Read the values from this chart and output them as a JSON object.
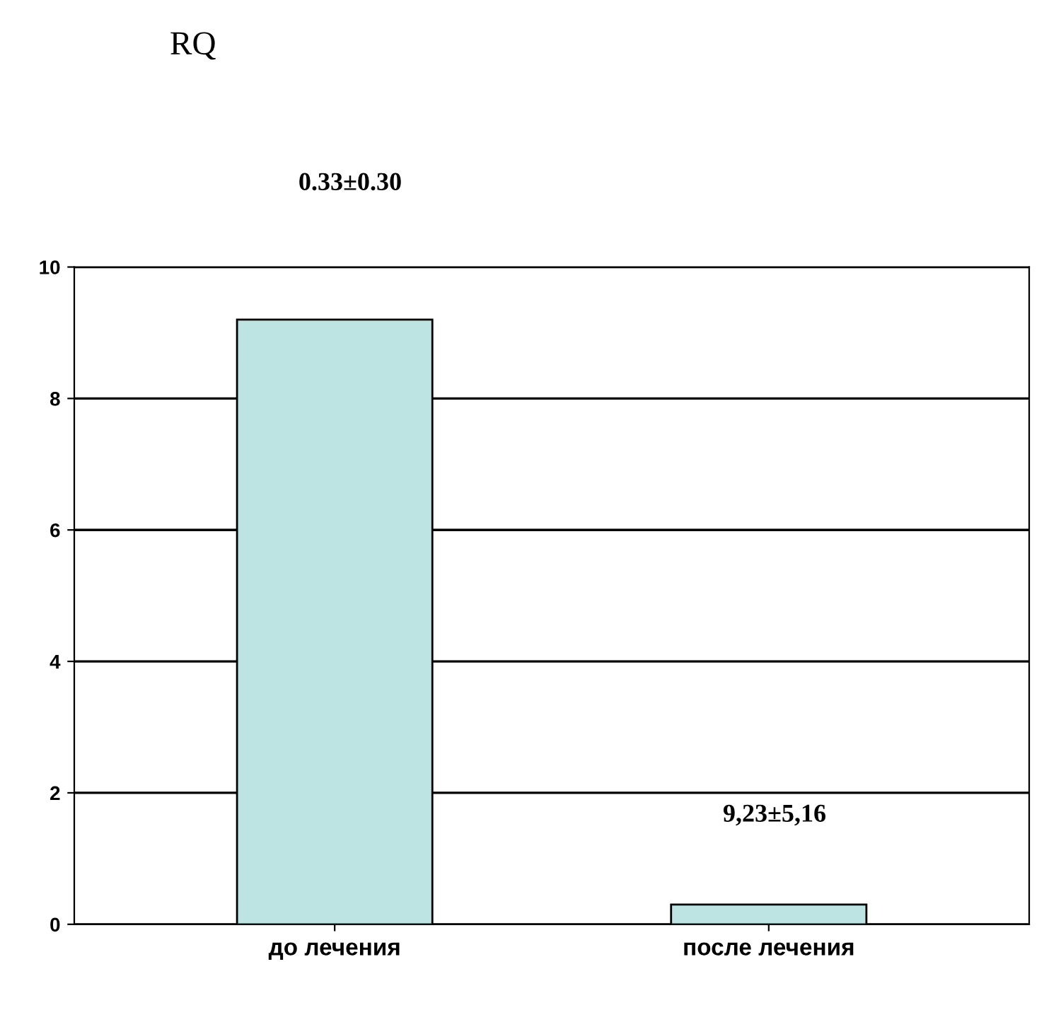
{
  "chart_data": {
    "type": "bar",
    "title": "RQ",
    "categories": [
      "до лечения",
      "после лечения"
    ],
    "values": [
      9.2,
      0.3
    ],
    "color": "#bde3e3",
    "ylim": [
      0,
      10
    ],
    "yticks": [
      0,
      2,
      4,
      6,
      8,
      10
    ],
    "grid": "y",
    "annotations": [
      "0.33±0.30",
      "9,23±5,16"
    ]
  }
}
